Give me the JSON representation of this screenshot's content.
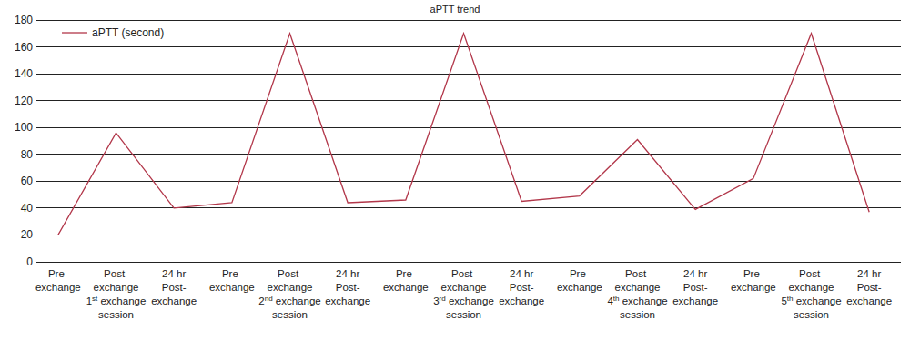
{
  "chart_data": {
    "type": "line",
    "title": "aPTT trend",
    "categories": [
      "Pre-\nexchange",
      "Post-\nexchange\n1st exchange\nsession",
      "24 hr\nPost-\nexchange",
      "Pre-\nexchange",
      "Post-\nexchange\n2nd exchange\nsession",
      "24 hr\nPost-\nexchange",
      "Pre-\nexchange",
      "Post-\nexchange\n3rd exchange\nsession",
      "24 hr\nPost-\nexchange",
      "Pre-\nexchange",
      "Post-\nexchange\n4th exchange\nsession",
      "24 hr\nPost-\nexchange",
      "Pre-\nexchange",
      "Post-\nexchange\n5th exchange\nsession",
      "24 hr\nPost-\nexchange"
    ],
    "series": [
      {
        "name": "aPTT (second)",
        "color": "#b2374a",
        "values": [
          20,
          96,
          40,
          44,
          170,
          44,
          46,
          170,
          45,
          49,
          91,
          39,
          62,
          170,
          37
        ]
      }
    ],
    "ylim": [
      0,
      180
    ],
    "yticks": [
      0,
      20,
      40,
      60,
      80,
      100,
      120,
      140,
      160,
      180
    ],
    "grid": true,
    "legend": "top-left"
  }
}
